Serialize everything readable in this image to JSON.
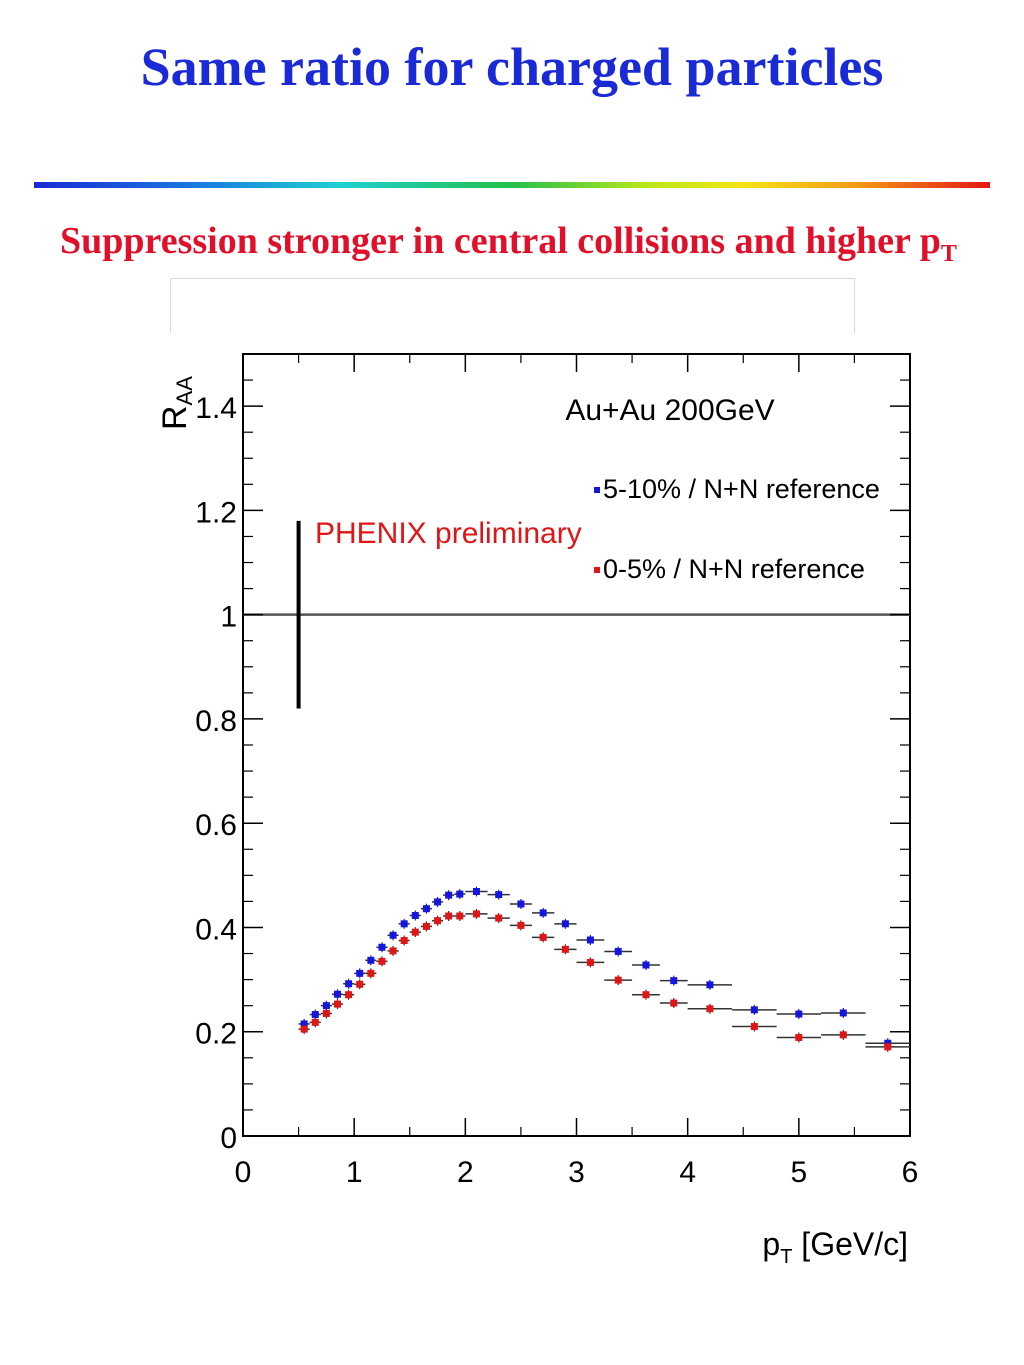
{
  "slide": {
    "title": "Same ratio for charged particles",
    "subtitle_text": "Suppression stronger in central collisions and higher p",
    "subtitle_sub": "T",
    "colors": {
      "title": "#1a2ad6",
      "subtitle": "#e0102a"
    }
  },
  "chart_data": {
    "type": "scatter",
    "title": "Au+Au 200GeV",
    "annotation": "PHENIX preliminary",
    "ylabel_main": "R",
    "ylabel_sub": "AA",
    "xlabel_main": "p",
    "xlabel_sub": "T",
    "xlabel_rest": " [GeV/c]",
    "xlim": [
      0,
      6
    ],
    "ylim": [
      0,
      1.5
    ],
    "x_ticks": [
      0,
      1,
      2,
      3,
      4,
      5,
      6
    ],
    "x_tick_labels": [
      "0",
      "1",
      "2",
      "3",
      "4",
      "5",
      "6"
    ],
    "y_ticks": [
      0,
      0.2,
      0.4,
      0.6,
      0.8,
      1,
      1.2,
      1.4
    ],
    "y_tick_labels": [
      "0",
      "0.2",
      "0.4",
      "0.6",
      "0.8",
      "1",
      "1.2",
      "1.4"
    ],
    "reference_line_y": 1,
    "systematic_error_bar": {
      "x": 0.5,
      "y_low": 0.82,
      "y_high": 1.18
    },
    "legend_position": "top-right",
    "series": [
      {
        "name": "5-10% / N+N reference",
        "color": "#1515e0",
        "points": [
          [
            0.55,
            0.215,
            0.05
          ],
          [
            0.65,
            0.233,
            0.05
          ],
          [
            0.75,
            0.25,
            0.05
          ],
          [
            0.85,
            0.272,
            0.05
          ],
          [
            0.95,
            0.292,
            0.05
          ],
          [
            1.05,
            0.312,
            0.05
          ],
          [
            1.15,
            0.337,
            0.05
          ],
          [
            1.25,
            0.362,
            0.05
          ],
          [
            1.35,
            0.385,
            0.05
          ],
          [
            1.45,
            0.407,
            0.05
          ],
          [
            1.55,
            0.423,
            0.05
          ],
          [
            1.65,
            0.436,
            0.05
          ],
          [
            1.75,
            0.449,
            0.05
          ],
          [
            1.85,
            0.462,
            0.05
          ],
          [
            1.95,
            0.464,
            0.05
          ],
          [
            2.1,
            0.469,
            0.1
          ],
          [
            2.3,
            0.463,
            0.1
          ],
          [
            2.5,
            0.445,
            0.1
          ],
          [
            2.7,
            0.428,
            0.1
          ],
          [
            2.9,
            0.407,
            0.1
          ],
          [
            3.125,
            0.376,
            0.125
          ],
          [
            3.375,
            0.354,
            0.125
          ],
          [
            3.625,
            0.328,
            0.125
          ],
          [
            3.875,
            0.298,
            0.125
          ],
          [
            4.2,
            0.29,
            0.2
          ],
          [
            4.6,
            0.242,
            0.2
          ],
          [
            5.0,
            0.234,
            0.2
          ],
          [
            5.4,
            0.236,
            0.2
          ],
          [
            5.8,
            0.178,
            0.2
          ]
        ]
      },
      {
        "name": "0-5% / N+N reference",
        "color": "#e01515",
        "points": [
          [
            0.55,
            0.205,
            0.05
          ],
          [
            0.65,
            0.218,
            0.05
          ],
          [
            0.75,
            0.235,
            0.05
          ],
          [
            0.85,
            0.253,
            0.05
          ],
          [
            0.95,
            0.271,
            0.05
          ],
          [
            1.05,
            0.291,
            0.05
          ],
          [
            1.15,
            0.312,
            0.05
          ],
          [
            1.25,
            0.335,
            0.05
          ],
          [
            1.35,
            0.355,
            0.05
          ],
          [
            1.45,
            0.375,
            0.05
          ],
          [
            1.55,
            0.391,
            0.05
          ],
          [
            1.65,
            0.402,
            0.05
          ],
          [
            1.75,
            0.413,
            0.05
          ],
          [
            1.85,
            0.422,
            0.05
          ],
          [
            1.95,
            0.422,
            0.05
          ],
          [
            2.1,
            0.426,
            0.1
          ],
          [
            2.3,
            0.418,
            0.1
          ],
          [
            2.5,
            0.404,
            0.1
          ],
          [
            2.7,
            0.381,
            0.1
          ],
          [
            2.9,
            0.358,
            0.1
          ],
          [
            3.125,
            0.333,
            0.125
          ],
          [
            3.375,
            0.299,
            0.125
          ],
          [
            3.625,
            0.271,
            0.125
          ],
          [
            3.875,
            0.255,
            0.125
          ],
          [
            4.2,
            0.244,
            0.2
          ],
          [
            4.6,
            0.21,
            0.2
          ],
          [
            5.0,
            0.189,
            0.2
          ],
          [
            5.4,
            0.194,
            0.2
          ],
          [
            5.8,
            0.171,
            0.2
          ]
        ]
      }
    ]
  }
}
